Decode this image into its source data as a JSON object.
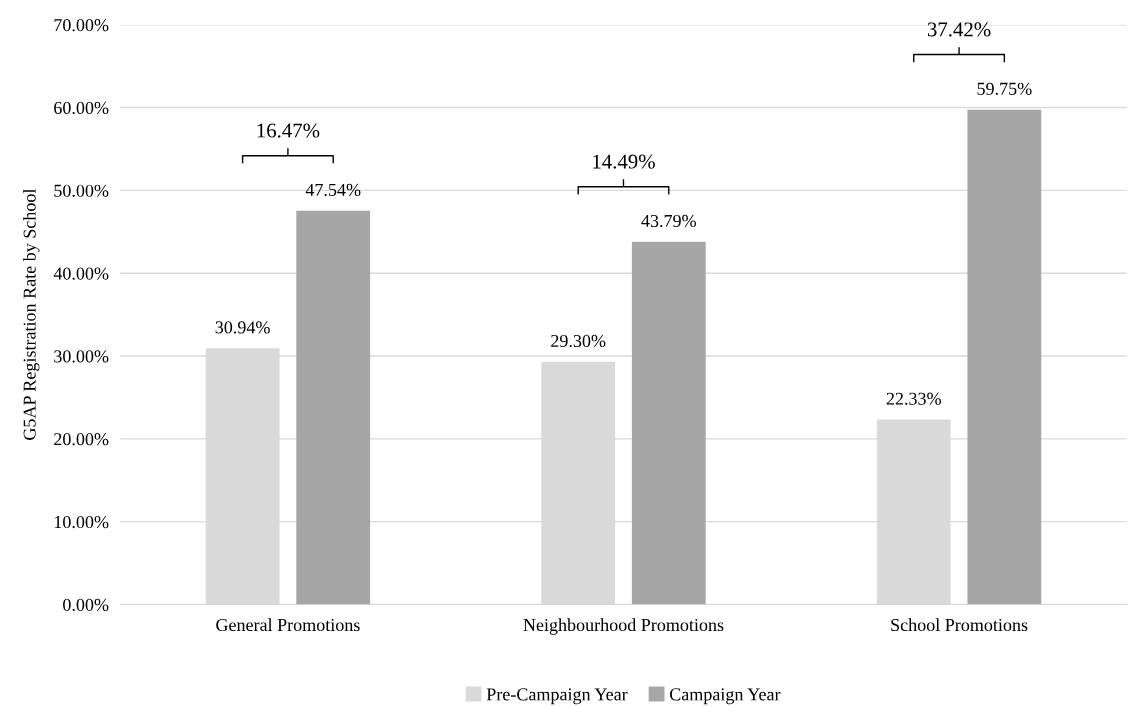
{
  "chart_data": {
    "type": "bar",
    "ylabel": "G5AP Registration Rate by School",
    "categories": [
      "General Promotions",
      "Neighbourhood Promotions",
      "School Promotions"
    ],
    "series": [
      {
        "name": "Pre-Campaign Year",
        "color": "#d9d9d9",
        "values": [
          30.94,
          29.3,
          22.33
        ],
        "value_labels": [
          "30.94%",
          "29.30%",
          "22.33%"
        ]
      },
      {
        "name": "Campaign Year",
        "color": "#a6a6a6",
        "values": [
          47.54,
          43.79,
          59.75
        ],
        "value_labels": [
          "47.54%",
          "43.79%",
          "59.75%"
        ]
      }
    ],
    "ylim": [
      0,
      70
    ],
    "yticks": [
      {
        "value": 0,
        "label": "0.00%"
      },
      {
        "value": 10,
        "label": "10.00%"
      },
      {
        "value": 20,
        "label": "20.00%"
      },
      {
        "value": 30,
        "label": "30.00%"
      },
      {
        "value": 40,
        "label": "40.00%"
      },
      {
        "value": 50,
        "label": "50.00%"
      },
      {
        "value": 60,
        "label": "60.00%"
      },
      {
        "value": 70,
        "label": "70.00%"
      }
    ],
    "annotations": [
      "16.47%",
      "14.49%",
      "37.42%"
    ],
    "grid": "y",
    "legend": "bottom"
  }
}
